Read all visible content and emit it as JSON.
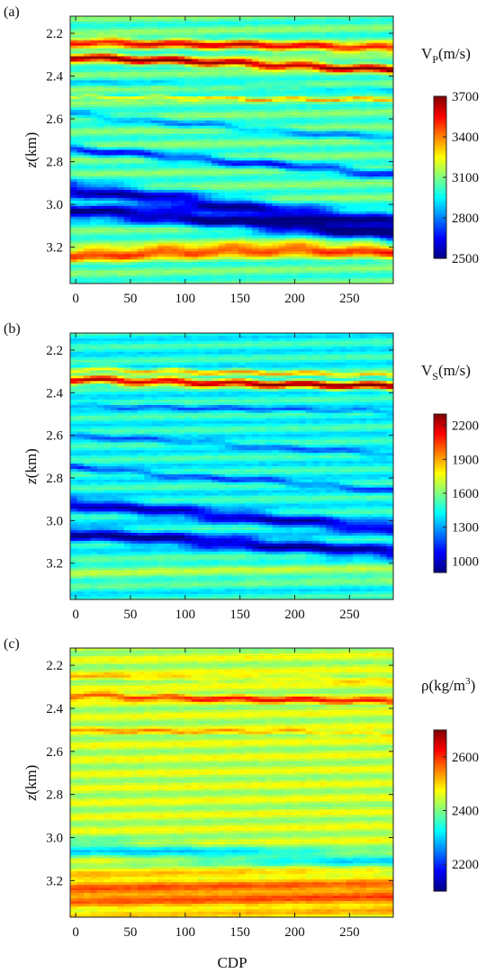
{
  "figure": {
    "xlabel": "CDP"
  },
  "chart_data": [
    {
      "type": "heatmap",
      "panel_label": "(a)",
      "title_main": "V",
      "title_sub": "P",
      "title_unit": "(m/s)",
      "xlabel": "",
      "ylabel_italic": "z",
      "ylabel_rest": "(km)",
      "xlim": [
        -5,
        290
      ],
      "ylim": [
        2.12,
        3.37
      ],
      "y_reversed": true,
      "xticks": [
        0,
        50,
        100,
        150,
        200,
        250
      ],
      "xtick_labels": [
        "0",
        "50",
        "100",
        "150",
        "200",
        "250"
      ],
      "yticks": [
        2.2,
        2.4,
        2.6,
        2.8,
        3.0,
        3.2
      ],
      "ytick_labels": [
        "2.2",
        "2.4",
        "2.6",
        "2.8",
        "3.0",
        "3.2"
      ],
      "colorbar": {
        "range": [
          2500,
          3700
        ],
        "ticks": [
          2500,
          2800,
          3100,
          3400,
          3700
        ],
        "tick_labels": [
          "2500",
          "2800",
          "3100",
          "3400",
          "3700"
        ],
        "colormap": "jet"
      },
      "layers": [
        {
          "depth": [
            2.24,
            2.25,
            2.26,
            2.27
          ],
          "value": 3550,
          "thickness": 0.02
        },
        {
          "depth": [
            2.31,
            2.33,
            2.35,
            2.37
          ],
          "value": 3680,
          "thickness": 0.018
        },
        {
          "depth": [
            2.43,
            2.44,
            2.45,
            2.46
          ],
          "value": 2950,
          "thickness": 0.015
        },
        {
          "depth": [
            2.5,
            2.5,
            2.51,
            2.51
          ],
          "value": 3300,
          "thickness": 0.008
        },
        {
          "depth": [
            2.58,
            2.62,
            2.66,
            2.69
          ],
          "value": 2850,
          "thickness": 0.018
        },
        {
          "depth": [
            2.74,
            2.78,
            2.82,
            2.86
          ],
          "value": 2700,
          "thickness": 0.02
        },
        {
          "depth": [
            2.93,
            2.98,
            3.04,
            3.08
          ],
          "value": 2580,
          "thickness": 0.04
        },
        {
          "depth": [
            3.03,
            3.06,
            3.1,
            3.14
          ],
          "value": 2520,
          "thickness": 0.035
        },
        {
          "depth": [
            3.24,
            3.22,
            3.21,
            3.22
          ],
          "value": 3500,
          "thickness": 0.03
        }
      ],
      "base_value": 3050
    },
    {
      "type": "heatmap",
      "panel_label": "(b)",
      "title_main": "V",
      "title_sub": "S",
      "title_unit": "(m/s)",
      "xlabel": "",
      "ylabel_italic": "z",
      "ylabel_rest": "(km)",
      "xlim": [
        -5,
        290
      ],
      "ylim": [
        2.12,
        3.37
      ],
      "y_reversed": true,
      "xticks": [
        0,
        50,
        100,
        150,
        200,
        250
      ],
      "xtick_labels": [
        "0",
        "50",
        "100",
        "150",
        "200",
        "250"
      ],
      "yticks": [
        2.2,
        2.4,
        2.6,
        2.8,
        3.0,
        3.2
      ],
      "ytick_labels": [
        "2.2",
        "2.4",
        "2.6",
        "2.8",
        "3.0",
        "3.2"
      ],
      "colorbar": {
        "range": [
          900,
          2300
        ],
        "ticks": [
          1000,
          1300,
          1600,
          1900,
          2200
        ],
        "tick_labels": [
          "1000",
          "1300",
          "1600",
          "1900",
          "2200"
        ],
        "colormap": "jet"
      },
      "layers": [
        {
          "depth": [
            2.29,
            2.3,
            2.31,
            2.32
          ],
          "value": 1850,
          "thickness": 0.012
        },
        {
          "depth": [
            2.34,
            2.35,
            2.36,
            2.37
          ],
          "value": 2250,
          "thickness": 0.018
        },
        {
          "depth": [
            2.46,
            2.47,
            2.48,
            2.49
          ],
          "value": 1250,
          "thickness": 0.012
        },
        {
          "depth": [
            2.6,
            2.63,
            2.66,
            2.69
          ],
          "value": 1250,
          "thickness": 0.015
        },
        {
          "depth": [
            2.75,
            2.79,
            2.82,
            2.86
          ],
          "value": 1200,
          "thickness": 0.015
        },
        {
          "depth": [
            2.92,
            2.96,
            3.0,
            3.04
          ],
          "value": 1000,
          "thickness": 0.03
        },
        {
          "depth": [
            3.06,
            3.09,
            3.12,
            3.15
          ],
          "value": 950,
          "thickness": 0.03
        },
        {
          "depth": [
            3.25,
            3.24,
            3.24,
            3.24
          ],
          "value": 1620,
          "thickness": 0.05
        }
      ],
      "base_value": 1450
    },
    {
      "type": "heatmap",
      "panel_label": "(c)",
      "title_main": "ρ",
      "title_sub": "",
      "title_unit": "(kg/m",
      "title_sup": "3",
      "title_end": ")",
      "xlabel": "CDP",
      "ylabel_italic": "z",
      "ylabel_rest": "(km)",
      "xlim": [
        -5,
        290
      ],
      "ylim": [
        2.12,
        3.37
      ],
      "y_reversed": true,
      "xticks": [
        0,
        50,
        100,
        150,
        200,
        250
      ],
      "xtick_labels": [
        "0",
        "50",
        "100",
        "150",
        "200",
        "250"
      ],
      "yticks": [
        2.2,
        2.4,
        2.6,
        2.8,
        3.0,
        3.2
      ],
      "ytick_labels": [
        "2.2",
        "2.4",
        "2.6",
        "2.8",
        "3.0",
        "3.2"
      ],
      "colorbar": {
        "range": [
          2100,
          2700
        ],
        "ticks": [
          2200,
          2400,
          2600
        ],
        "tick_labels": [
          "2200",
          "2400",
          "2600"
        ],
        "colormap": "jet"
      },
      "layers": [
        {
          "depth": [
            2.25,
            2.26,
            2.26,
            2.27
          ],
          "value": 2500,
          "thickness": 0.012
        },
        {
          "depth": [
            2.34,
            2.35,
            2.36,
            2.37
          ],
          "value": 2600,
          "thickness": 0.015
        },
        {
          "depth": [
            2.5,
            2.51,
            2.51,
            2.52
          ],
          "value": 2520,
          "thickness": 0.01
        },
        {
          "depth": [
            3.05,
            3.07,
            3.09,
            3.11
          ],
          "value": 2320,
          "thickness": 0.04
        },
        {
          "depth": [
            3.26,
            3.26,
            3.26,
            3.26
          ],
          "value": 2560,
          "thickness": 0.09
        }
      ],
      "base_value": 2440
    }
  ]
}
